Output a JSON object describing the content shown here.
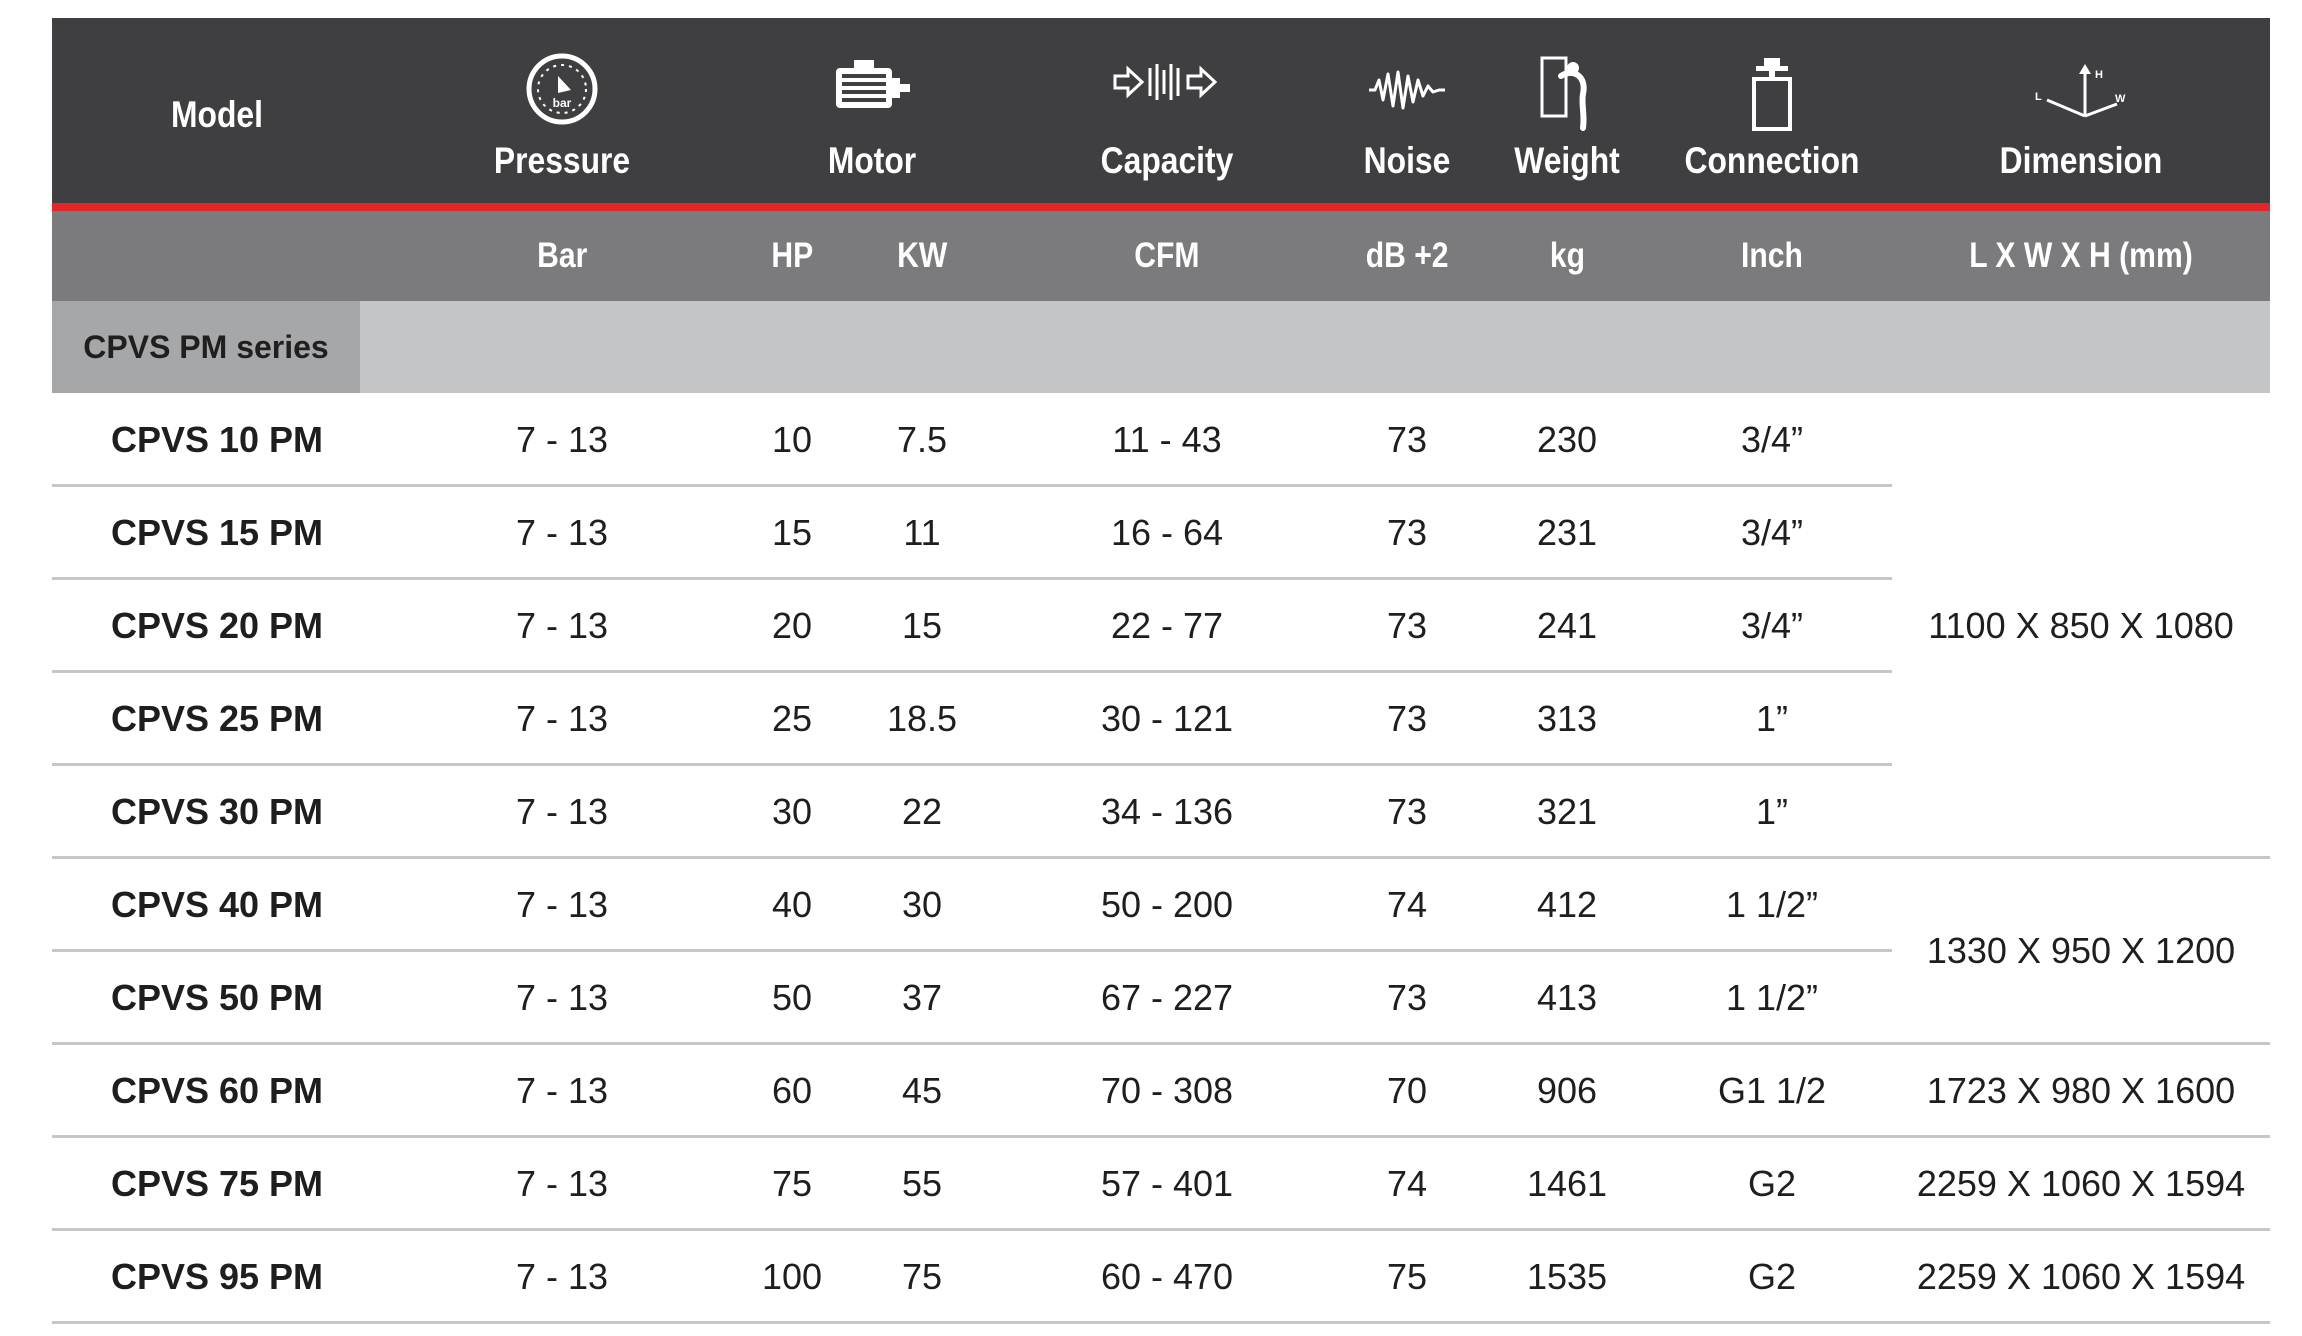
{
  "header": {
    "columns": [
      {
        "key": "model",
        "label": "Model",
        "icon": ""
      },
      {
        "key": "pressure",
        "label": "Pressure",
        "icon": "pressure-gauge-icon"
      },
      {
        "key": "motor",
        "label": "Motor",
        "icon": "motor-icon"
      },
      {
        "key": "capacity",
        "label": "Capacity",
        "icon": "airflow-icon"
      },
      {
        "key": "noise",
        "label": "Noise",
        "icon": "noise-wave-icon"
      },
      {
        "key": "weight",
        "label": "Weight",
        "icon": "weight-icon"
      },
      {
        "key": "connection",
        "label": "Connection",
        "icon": "connection-icon"
      },
      {
        "key": "dimension",
        "label": "Dimension",
        "icon": "dimension-axes-icon"
      }
    ],
    "gauge_text": "bar",
    "axis_h": "H",
    "axis_l": "L",
    "axis_w": "W"
  },
  "units": [
    "Bar",
    "HP",
    "KW",
    "CFM",
    "dB +2",
    "kg",
    "Inch",
    "L X W X H (mm)"
  ],
  "series_label": "CPVS PM series",
  "rows": [
    [
      "CPVS 10 PM",
      "7 - 13",
      "10",
      "7.5",
      "11 - 43",
      "73",
      "230",
      "3/4”"
    ],
    [
      "CPVS 15 PM",
      "7 - 13",
      "15",
      "11",
      "16 - 64",
      "73",
      "231",
      "3/4”"
    ],
    [
      "CPVS 20 PM",
      "7 - 13",
      "20",
      "15",
      "22 - 77",
      "73",
      "241",
      "3/4”"
    ],
    [
      "CPVS 25 PM",
      "7 - 13",
      "25",
      "18.5",
      "30 - 121",
      "73",
      "313",
      "1”"
    ],
    [
      "CPVS 30 PM",
      "7 - 13",
      "30",
      "22",
      "34 - 136",
      "73",
      "321",
      "1”"
    ],
    [
      "CPVS 40 PM",
      "7 - 13",
      "40",
      "30",
      "50 - 200",
      "74",
      "412",
      "1 1/2”"
    ],
    [
      "CPVS 50 PM",
      "7 - 13",
      "50",
      "37",
      "67 - 227",
      "73",
      "413",
      "1 1/2”"
    ],
    [
      "CPVS 60 PM",
      "7 - 13",
      "60",
      "45",
      "70 - 308",
      "70",
      "906",
      "G1 1/2"
    ],
    [
      "CPVS 75 PM",
      "7 - 13",
      "75",
      "55",
      "57 - 401",
      "74",
      "1461",
      "G2"
    ],
    [
      "CPVS 95 PM",
      "7 - 13",
      "100",
      "75",
      "60 - 470",
      "75",
      "1535",
      "G2"
    ]
  ],
  "dimensions": [
    {
      "value": "1100 X 850 X 1080",
      "rows": 5
    },
    {
      "value": "1330 X 950 X 1200",
      "rows": 2
    },
    {
      "value": "1723 X 980 X 1600",
      "rows": 1
    },
    {
      "value": "2259 X 1060 X 1594",
      "rows": 1
    },
    {
      "value": "2259 X 1060 X 1594",
      "rows": 1
    }
  ],
  "colors": {
    "header_bg": "#3f3f41",
    "accent_red": "#e5252a",
    "units_bg": "#7b7b7d",
    "series_bg": "#c4c5c7",
    "series_label_bg": "#a6a7a9"
  }
}
